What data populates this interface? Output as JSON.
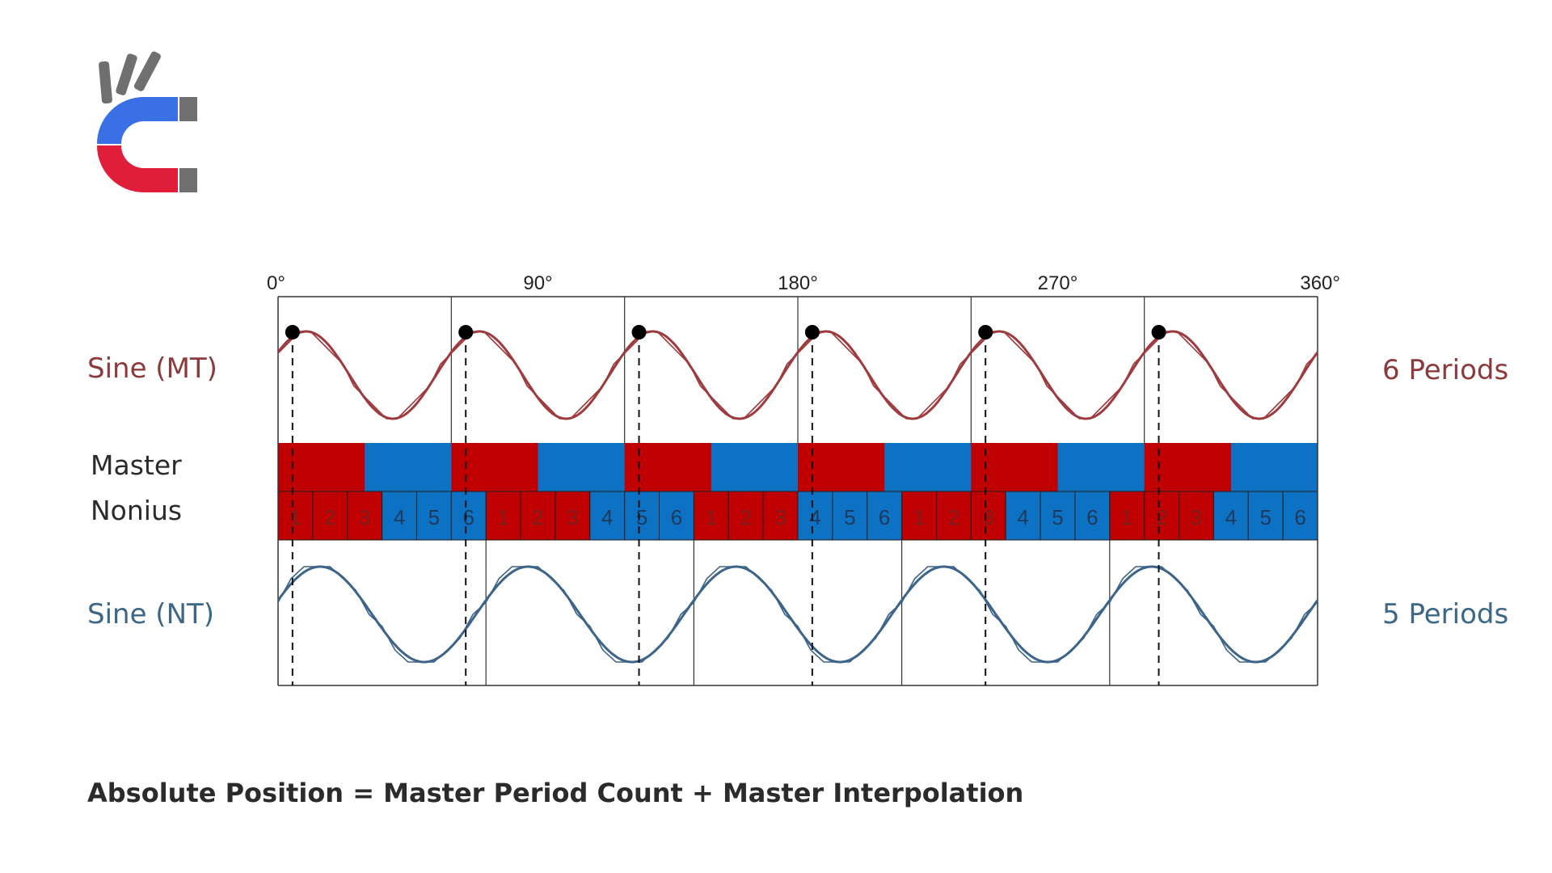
{
  "colors": {
    "mt_red": "#c00000",
    "nt_blue": "#0e72c4",
    "mt_curve": "#9e3b3e",
    "nt_curve": "#3d6489",
    "mt_label": "#8d3a3d",
    "nt_label": "#3c6787",
    "axis": "#333333",
    "text": "#2b2b2b"
  },
  "logo": {
    "icon": "magnet-hand-logo"
  },
  "labels": {
    "sine_mt": "Sine (MT)",
    "sine_nt": "Sine (NT)",
    "master": "Master",
    "nonius": "Nonius",
    "mt_periods": "6 Periods",
    "nt_periods": "5 Periods"
  },
  "formula": "Absolute Position = Master Period Count + Master Interpolation",
  "chart_data": {
    "type": "line",
    "x_ticks": [
      "0°",
      "90°",
      "180°",
      "270°",
      "360°"
    ],
    "x_range": [
      0,
      360
    ],
    "series": [
      {
        "name": "Sine (MT)",
        "periods": 6
      },
      {
        "name": "Sine (NT)",
        "periods": 5
      }
    ],
    "master_segments": 12,
    "nonius_cells": [
      "1",
      "2",
      "3",
      "4",
      "5",
      "6",
      "1",
      "2",
      "3",
      "4",
      "5",
      "6",
      "1",
      "2",
      "3",
      "4",
      "5",
      "6",
      "1",
      "2",
      "3",
      "4",
      "5",
      "6",
      "1",
      "2",
      "3",
      "4",
      "5",
      "6"
    ],
    "marker_angles": [
      5,
      65,
      125,
      185,
      245,
      305
    ]
  }
}
